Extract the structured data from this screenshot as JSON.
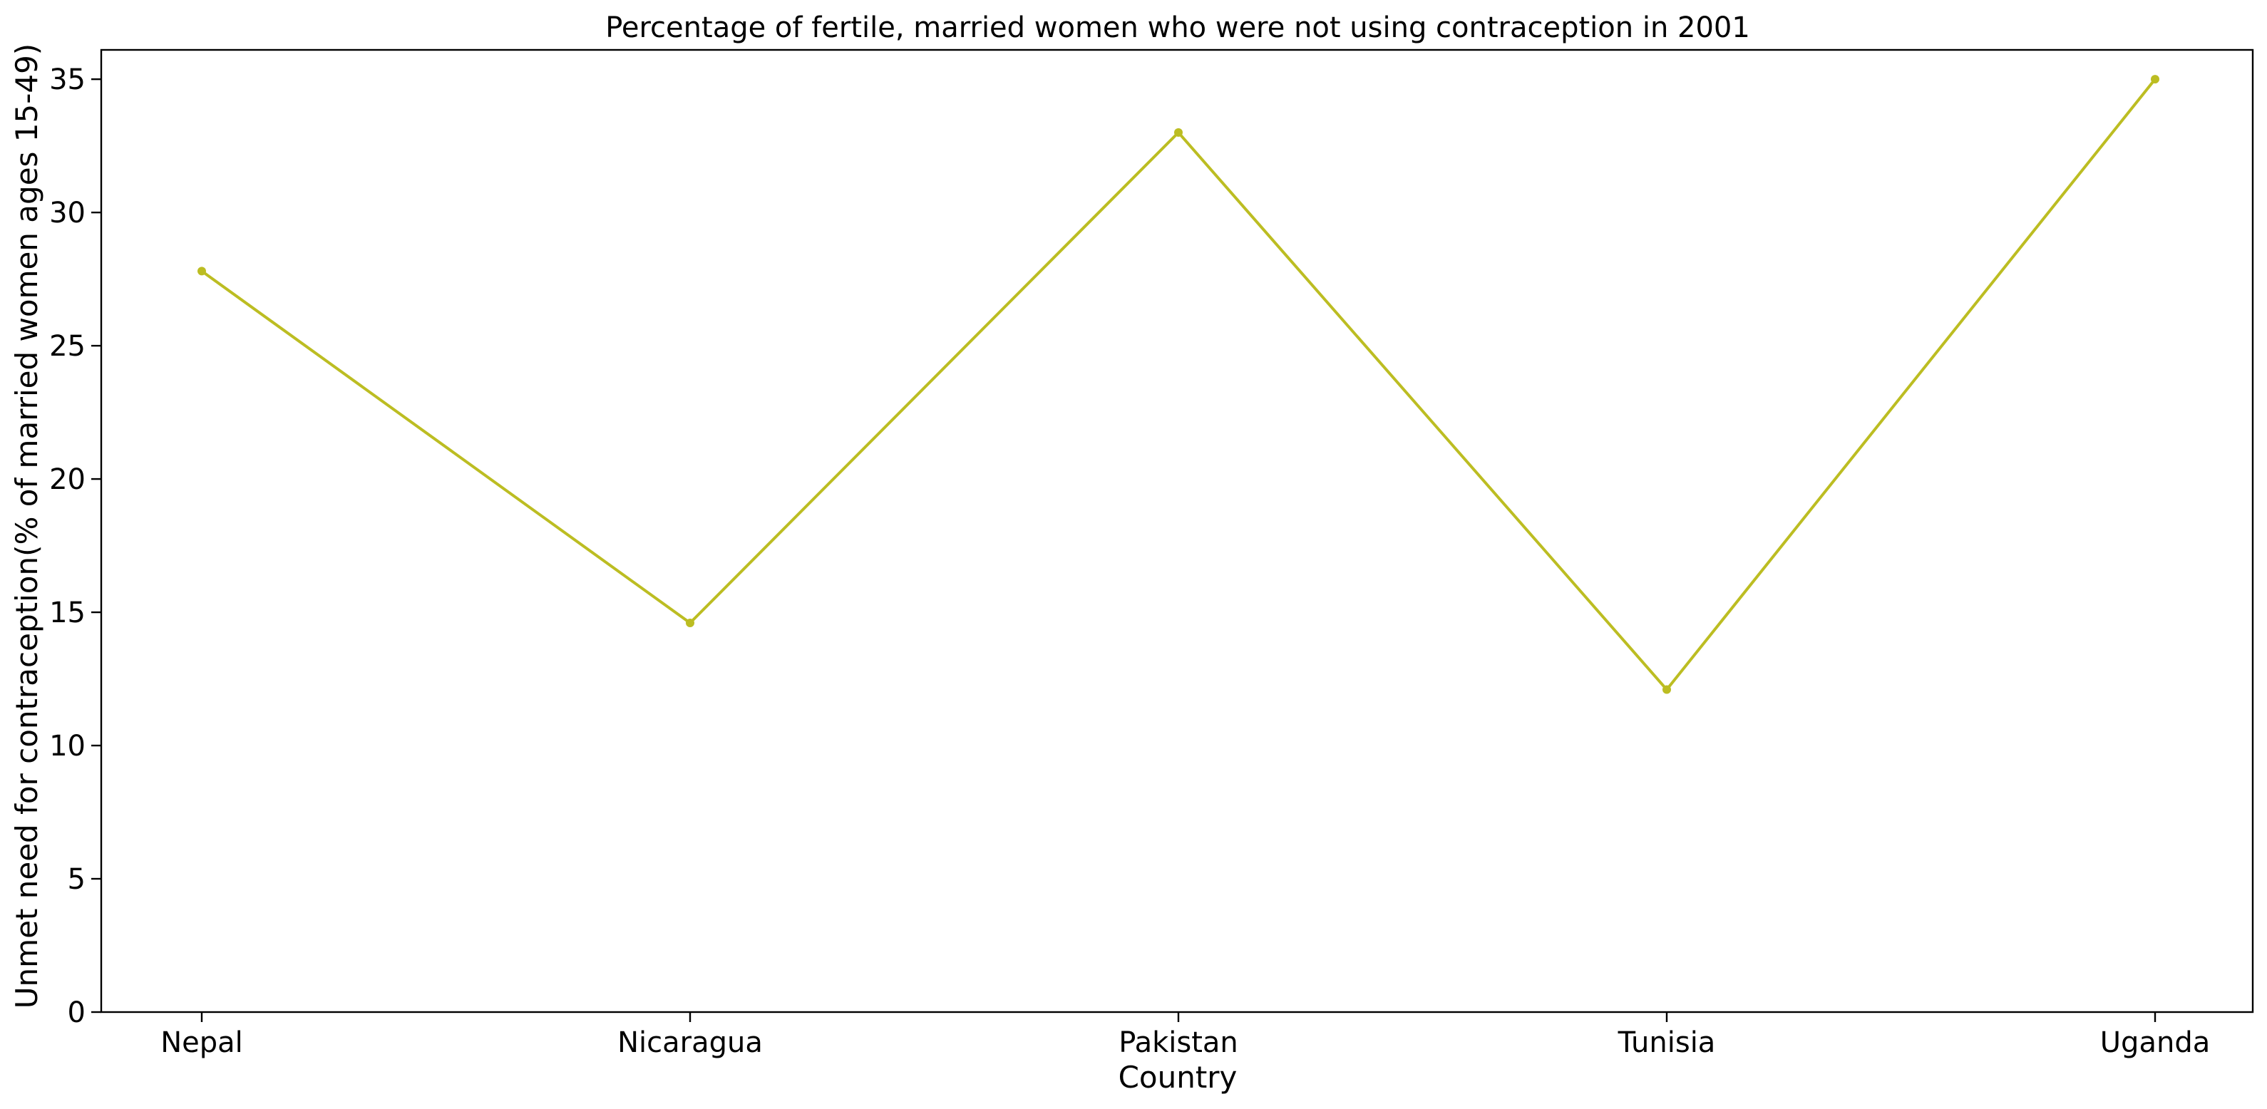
{
  "chart_data": {
    "type": "line",
    "title": "Percentage of fertile, married women who were not using contraception in 2001",
    "xlabel": "Country",
    "ylabel": "Unmet need for contraception(% of married women ages 15-49)",
    "categories": [
      "Nepal",
      "Nicaragua",
      "Pakistan",
      "Tunisia",
      "Uganda"
    ],
    "series": [
      {
        "values": [
          27.8,
          14.6,
          33.0,
          12.1,
          35.0
        ],
        "color": "#bcbd22"
      }
    ],
    "ylim": [
      0,
      36.1
    ],
    "yticks": [
      0,
      5,
      10,
      15,
      20,
      25,
      30,
      35
    ],
    "grid": false,
    "legend": "none"
  }
}
